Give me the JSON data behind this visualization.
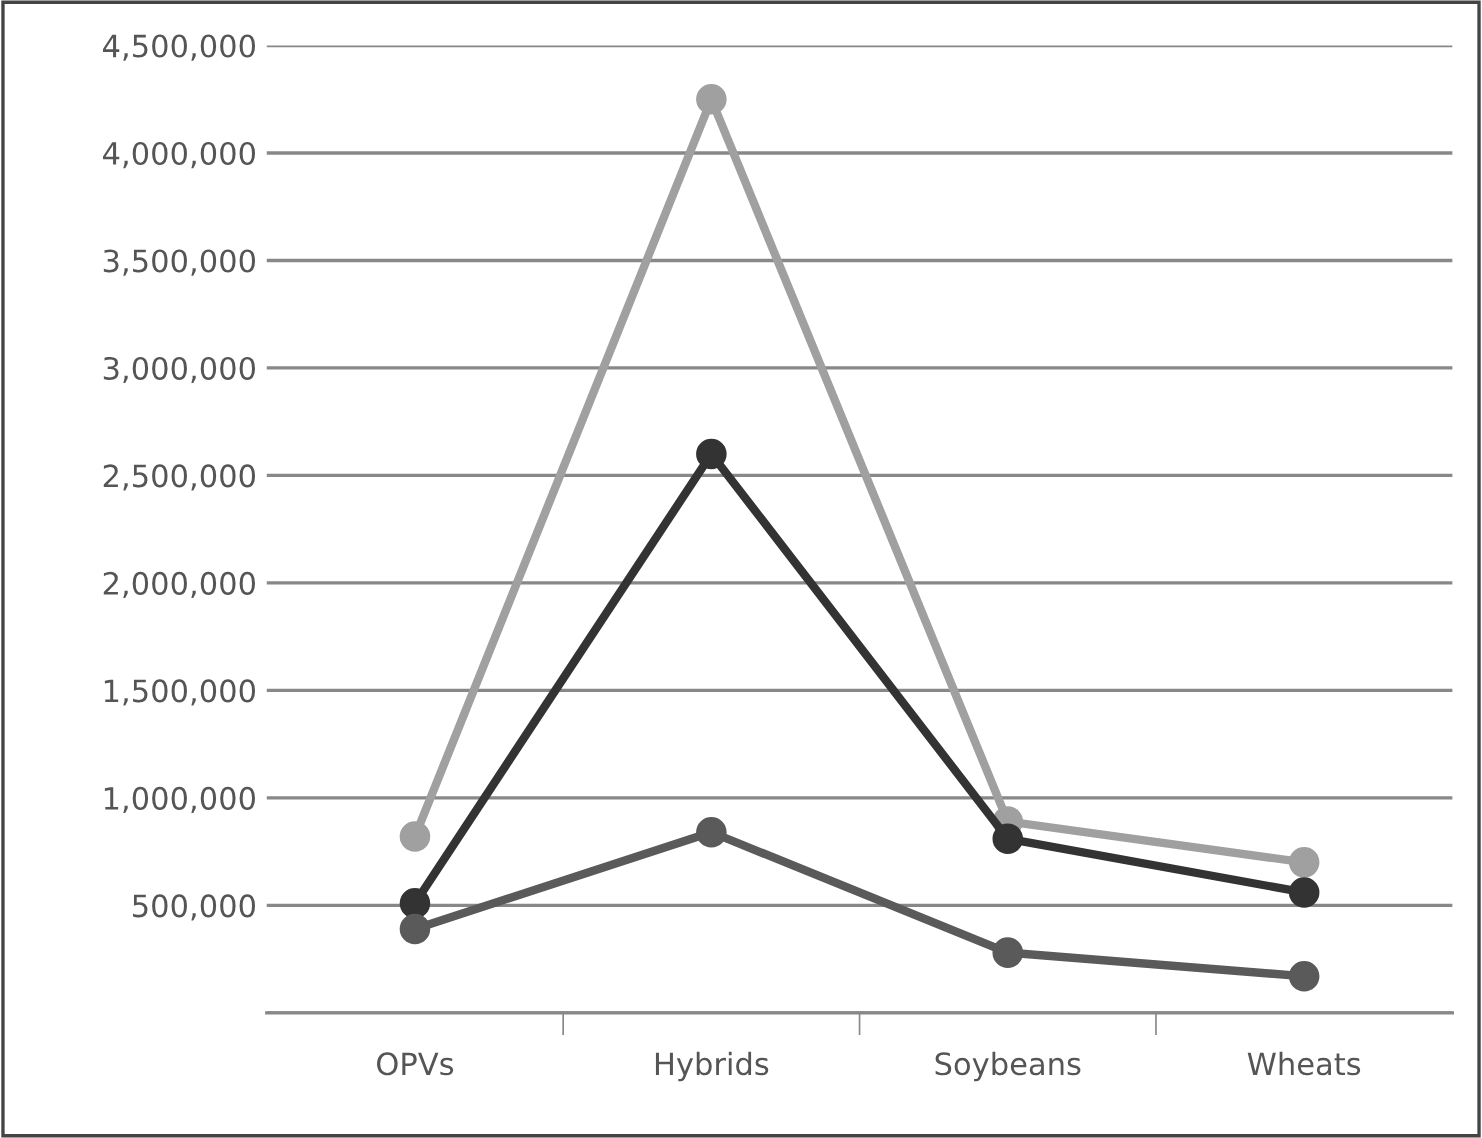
{
  "chart_data": {
    "type": "line",
    "categories": [
      "OPVs",
      "Hybrids",
      "Soybeans",
      "Wheats"
    ],
    "series": [
      {
        "color": "#a0a0a0",
        "values": [
          820000,
          4250000,
          890000,
          700000
        ]
      },
      {
        "color": "#333333",
        "values": [
          510000,
          2600000,
          810000,
          560000
        ]
      },
      {
        "color": "#5a5a5a",
        "values": [
          390000,
          840000,
          280000,
          170000
        ]
      }
    ],
    "ylim": [
      0,
      4500000
    ],
    "yticks": [
      {
        "value": 0,
        "label": null
      },
      {
        "value": 500000,
        "label": "500,000"
      },
      {
        "value": 1000000,
        "label": "1,000,000"
      },
      {
        "value": 1500000,
        "label": "1,500,000"
      },
      {
        "value": 2000000,
        "label": "2,000,000"
      },
      {
        "value": 2500000,
        "label": "2,500,000"
      },
      {
        "value": 3000000,
        "label": "3,000,000"
      },
      {
        "value": 3500000,
        "label": "3,500,000"
      },
      {
        "value": 4000000,
        "label": "4,000,000"
      },
      {
        "value": 4500000,
        "label": "4,500,000"
      }
    ],
    "grid": "y",
    "marker": "circle",
    "line_style": "solid"
  }
}
